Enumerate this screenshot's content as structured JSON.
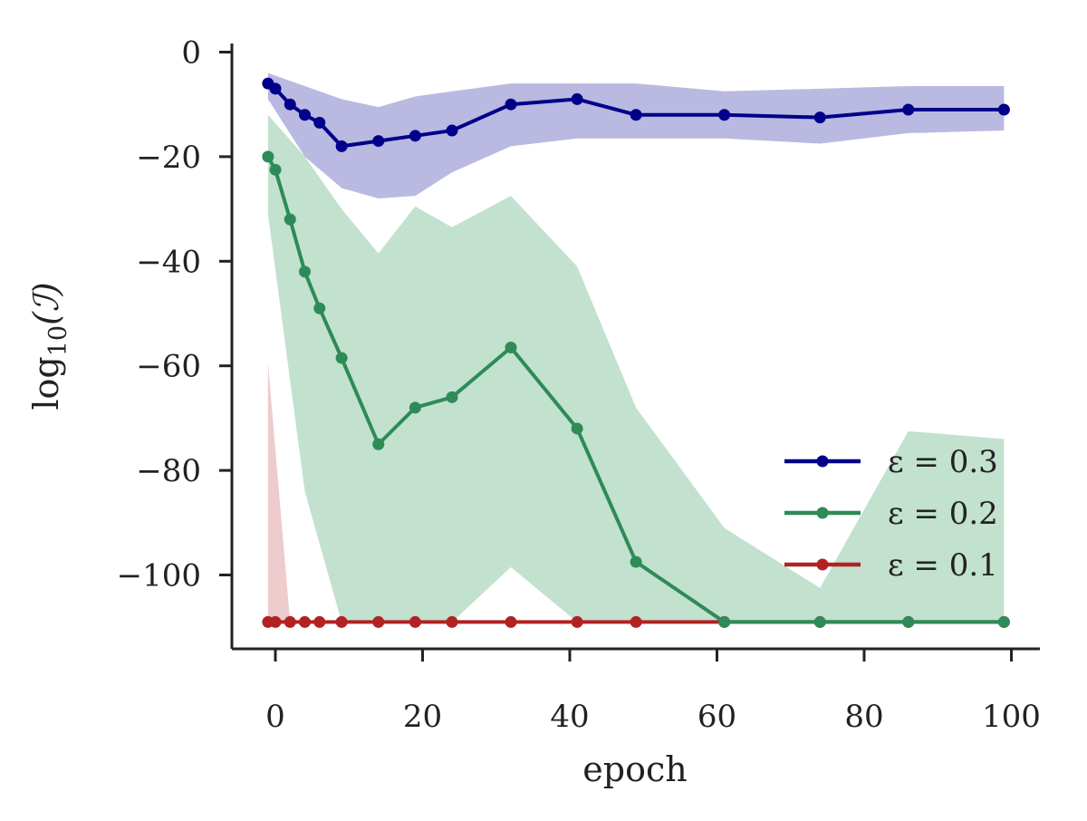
{
  "chart_data": {
    "type": "line",
    "title": "",
    "xlabel": "epoch",
    "ylabel": "log10(I)",
    "ylabel_main": "log",
    "ylabel_sub": "10",
    "ylabel_arg": "(ℐ)",
    "xlim": [
      -6,
      103
    ],
    "ylim": [
      -114,
      1.5
    ],
    "xticks": [
      0,
      20,
      40,
      60,
      80,
      100
    ],
    "xtick_labels": [
      "0",
      "20",
      "40",
      "60",
      "80",
      "100"
    ],
    "yticks": [
      0,
      -20,
      -40,
      -60,
      -80,
      -100
    ],
    "ytick_labels": [
      "0",
      "−20",
      "−40",
      "−60",
      "−80",
      "−100"
    ],
    "grid": false,
    "legend_position": "lower-right",
    "series": [
      {
        "name": "ε = 0.3",
        "color": "#00008b",
        "band_color": "#8080c8",
        "x": [
          -1,
          0,
          2,
          4,
          6,
          9,
          14,
          19,
          24,
          32,
          41,
          49,
          61,
          74,
          86,
          99
        ],
        "y": [
          -6,
          -7,
          -10,
          -12,
          -13.5,
          -18,
          -17,
          -16,
          -15,
          -10,
          -9,
          -12,
          -12,
          -12.5,
          -11,
          -11
        ],
        "band_x": [
          -1,
          4,
          9,
          14,
          19,
          24,
          32,
          41,
          49,
          61,
          74,
          86,
          99
        ],
        "band_upper": [
          -4,
          -6.5,
          -9,
          -10.5,
          -8.5,
          -7.5,
          -6,
          -6,
          -6,
          -7.5,
          -7,
          -6.5,
          -6.5
        ],
        "band_lower": [
          -9,
          -20,
          -26,
          -28,
          -27.5,
          -23,
          -18,
          -16.5,
          -16.5,
          -16.5,
          -17.5,
          -15.5,
          -15
        ]
      },
      {
        "name": "ε = 0.2",
        "color": "#2e8b57",
        "band_color": "#8fc9a8",
        "x": [
          -1,
          0,
          2,
          4,
          6,
          9,
          14,
          19,
          24,
          32,
          41,
          49,
          61,
          74,
          86,
          99
        ],
        "y": [
          -20,
          -22.5,
          -32,
          -42,
          -49,
          -58.5,
          -75,
          -68,
          -66,
          -56.5,
          -72,
          -97.5,
          -109,
          -109,
          -109,
          -109
        ],
        "band_x": [
          -1,
          4,
          9,
          14,
          19,
          24,
          32,
          41,
          49,
          61,
          74,
          86,
          99
        ],
        "band_upper": [
          -12,
          -20,
          -30,
          -38.5,
          -29.5,
          -33.5,
          -27.5,
          -41,
          -68,
          -91,
          -102.5,
          -72.5,
          -74
        ],
        "band_lower": [
          -31,
          -84,
          -109,
          -109,
          -109,
          -109,
          -98.5,
          -109,
          -109,
          -109,
          -109,
          -109,
          -109
        ]
      },
      {
        "name": "ε = 0.1",
        "color": "#b22222",
        "band_color": "#e0a0a4",
        "x": [
          -1,
          0,
          2,
          4,
          6,
          9,
          14,
          19,
          24,
          32,
          41,
          49,
          61,
          74,
          86,
          99
        ],
        "y": [
          -109,
          -109,
          -109,
          -109,
          -109,
          -109,
          -109,
          -109,
          -109,
          -109,
          -109,
          -109,
          -109,
          -109,
          -109,
          -109
        ],
        "band_x": [
          -1,
          2
        ],
        "band_upper": [
          -59.5,
          -109
        ],
        "band_lower": [
          -109,
          -109
        ]
      }
    ]
  }
}
